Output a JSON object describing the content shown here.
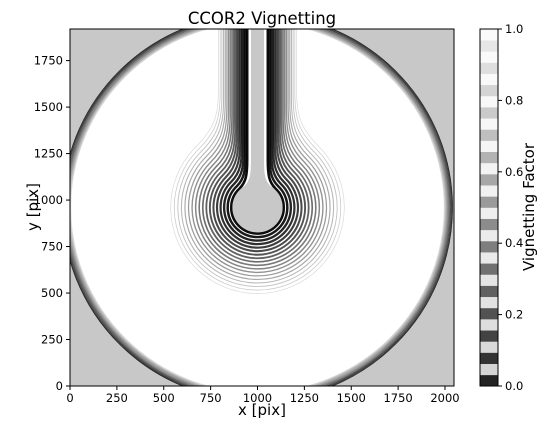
{
  "chart_data": {
    "type": "heatmap",
    "title": "CCOR2 Vignetting",
    "xlabel": "x [pix]",
    "ylabel": "y [pix]",
    "xlim": [
      0,
      2048
    ],
    "ylim": [
      0,
      1920
    ],
    "xticks": [
      0,
      250,
      500,
      750,
      1000,
      1250,
      1500,
      1750,
      2000
    ],
    "yticks": [
      0,
      250,
      500,
      750,
      1000,
      1250,
      1500,
      1750
    ],
    "colorbar": {
      "label": "Vignetting Factor",
      "range": [
        0.0,
        1.0
      ],
      "ticks": [
        "0.0",
        "0.2",
        "0.4",
        "0.6",
        "0.8",
        "1.0"
      ],
      "colormap": "binary-contour"
    },
    "occulter": {
      "center_x": 1000,
      "center_y": 960,
      "radius": 140,
      "value": 0.0,
      "pylon_half_width": 55
    },
    "field_stop": {
      "center_x": 1000,
      "center_y": 960,
      "radius": 1040,
      "outside_value": 0.0
    },
    "contours": {
      "inner_levels": 18,
      "inner_spacing": 19,
      "outer_levels": 12,
      "outer_spacing": 4
    },
    "colors": {
      "masked": "#c8c8c8",
      "background": "#ffffff",
      "contour": "#000000"
    }
  }
}
